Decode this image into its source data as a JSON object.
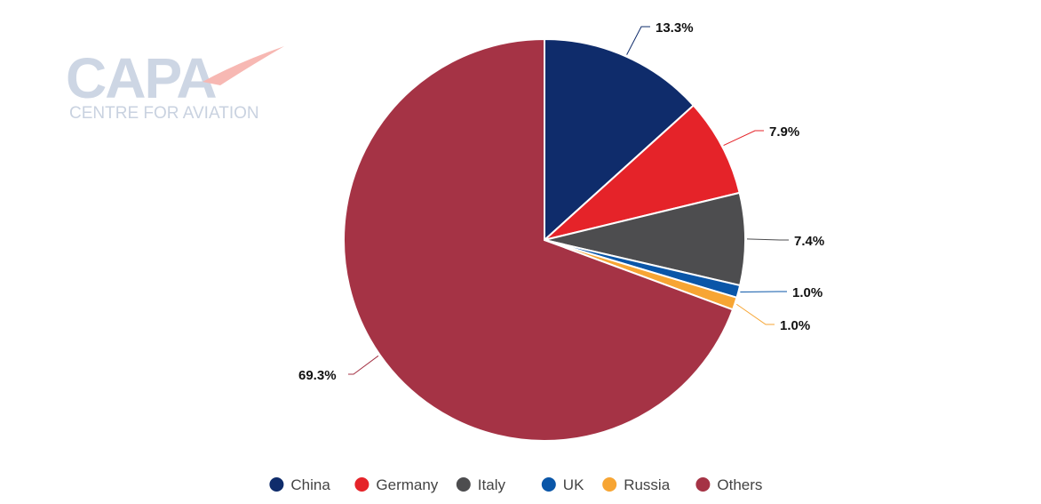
{
  "logo": {
    "name": "CAPA",
    "tagline": "CENTRE FOR AVIATION",
    "accent_color": "#f7b8b3"
  },
  "chart_data": {
    "type": "pie",
    "title": "",
    "start_angle_deg": 0,
    "direction": "clockwise",
    "legend_position": "bottom",
    "slices": [
      {
        "label": "China",
        "value": 13.3,
        "display": "13.3%",
        "color": "#0f2c6b"
      },
      {
        "label": "Germany",
        "value": 7.9,
        "display": "7.9%",
        "color": "#e52329"
      },
      {
        "label": "Italy",
        "value": 7.4,
        "display": "7.4%",
        "color": "#4d4d4f"
      },
      {
        "label": "UK",
        "value": 1.0,
        "display": "1.0%",
        "color": "#0a56a8"
      },
      {
        "label": "Russia",
        "value": 1.0,
        "display": "1.0%",
        "color": "#f7a533"
      },
      {
        "label": "Others",
        "value": 69.3,
        "display": "69.3%",
        "color": "#a53345"
      }
    ]
  }
}
